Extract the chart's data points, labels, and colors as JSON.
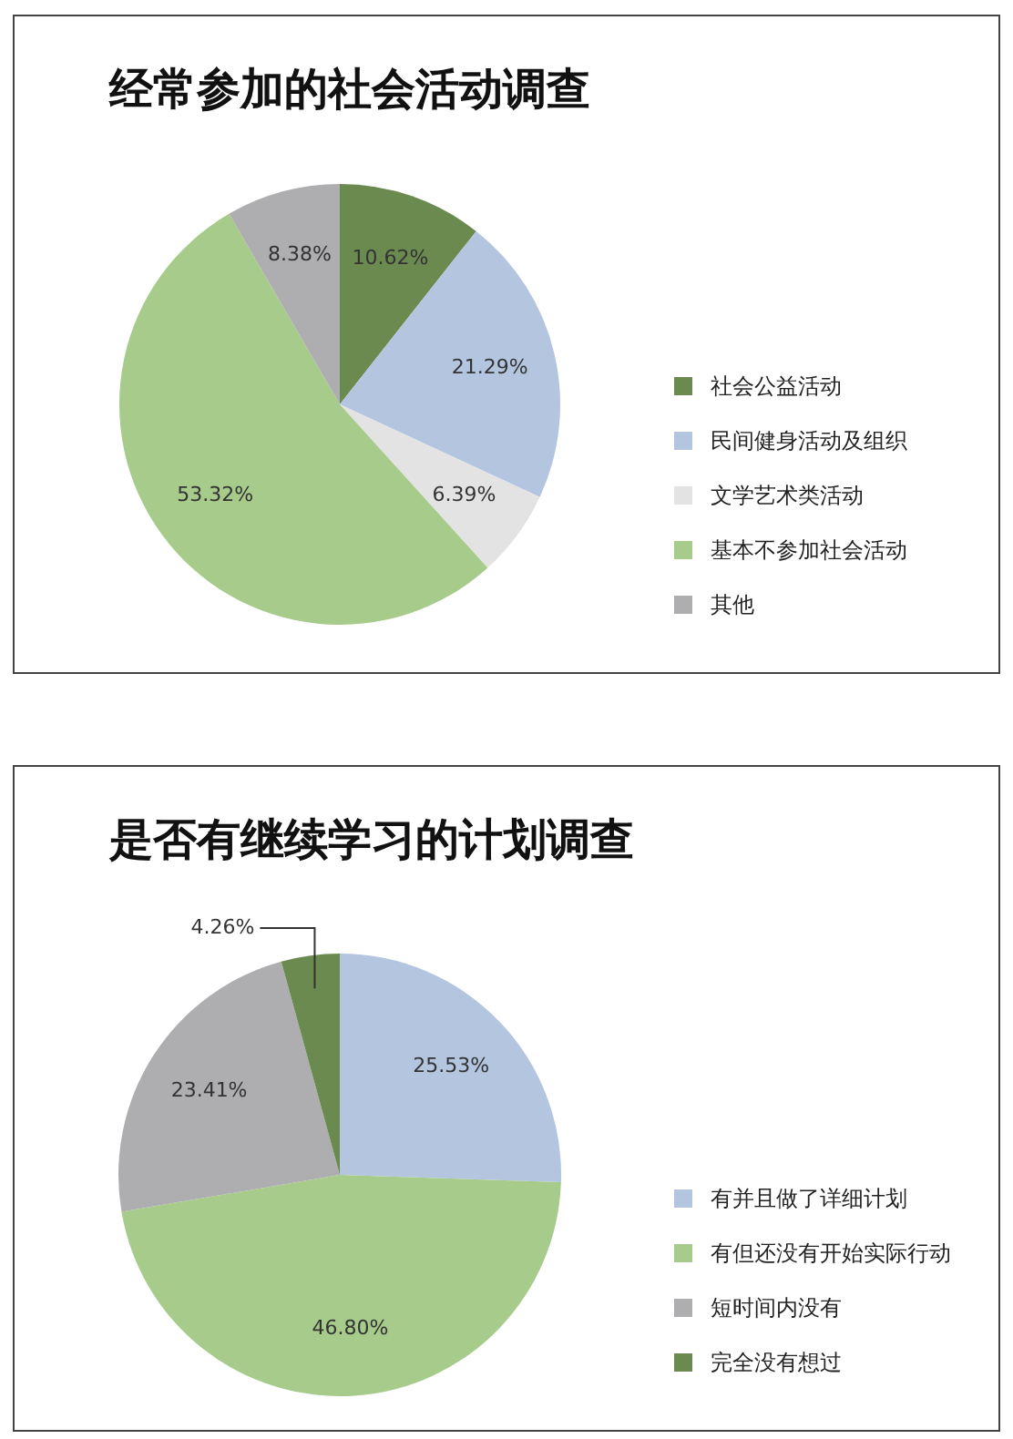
{
  "chart_data": [
    {
      "type": "pie",
      "title": "经常参加的社会活动调查",
      "categories": [
        "社会公益活动",
        "民间健身活动及组织",
        "文学艺术类活动",
        "基本不参加社会活动",
        "其他"
      ],
      "values": [
        10.62,
        21.29,
        6.39,
        53.32,
        8.38
      ],
      "colors": [
        "#6b8a4f",
        "#b3c5df",
        "#e3e3e3",
        "#a7cb8b",
        "#aeaeb0"
      ],
      "value_labels": [
        "10.62%",
        "21.29%",
        "6.39%",
        "53.32%",
        "8.38%"
      ],
      "legend": "right"
    },
    {
      "type": "pie",
      "title": "是否有继续学习的计划调查",
      "categories": [
        "有并且做了详细计划",
        "有但还没有开始实际行动",
        "短时间内没有",
        "完全没有想过"
      ],
      "values": [
        25.53,
        46.8,
        23.41,
        4.26
      ],
      "colors": [
        "#b3c5df",
        "#a7cb8b",
        "#aeaeb0",
        "#6b8a4f"
      ],
      "value_labels": [
        "25.53%",
        "46.80%",
        "23.41%",
        "4.26%"
      ],
      "legend": "right"
    }
  ]
}
